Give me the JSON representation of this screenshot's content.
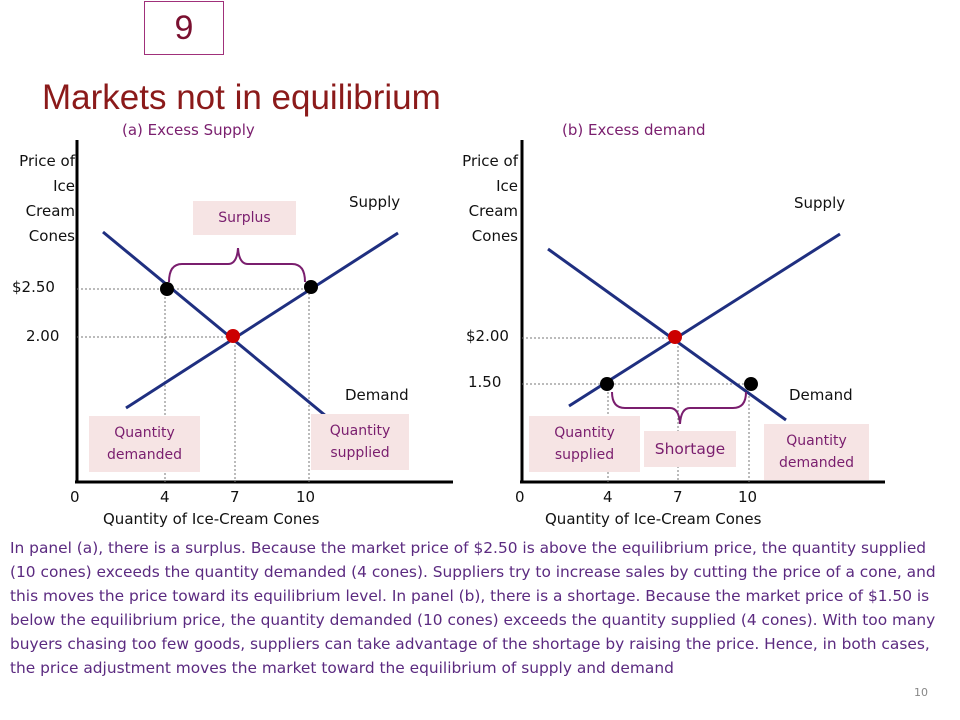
{
  "slide": {
    "number_box": "9",
    "title": "Markets not in equilibrium",
    "page_number": "10"
  },
  "panel_a": {
    "subtitle": "(a) Excess Supply",
    "y_label": [
      "Price of",
      "Ice",
      "Cream",
      "Cones"
    ],
    "x_label": "Quantity of Ice-Cream Cones",
    "supply_label": "Supply",
    "demand_label": "Demand",
    "price_high": "$2.50",
    "price_eq": "2.00",
    "x_ticks": [
      "0",
      "4",
      "7",
      "10"
    ],
    "box_top": "Surplus",
    "box_left": "Quantity demanded",
    "box_right": "Quantity supplied"
  },
  "panel_b": {
    "subtitle": "(b) Excess demand",
    "y_label": [
      "Price of",
      "Ice",
      "Cream",
      "Cones"
    ],
    "x_label": "Quantity of Ice-Cream Cones",
    "supply_label": "Supply",
    "demand_label": "Demand",
    "price_eq": "$2.00",
    "price_low": "1.50",
    "x_ticks": [
      "0",
      "4",
      "7",
      "10"
    ],
    "box_left": "Quantity supplied",
    "box_mid": "Shortage",
    "box_right": "Quantity demanded"
  },
  "colors": {
    "curve": "#1f2f80",
    "axis": "#000000",
    "equilibrium_dot": "#cc0000",
    "market_dot": "#000000",
    "brace": "#7a1e6e",
    "box_fill": "#f6e4e4"
  },
  "description": "In panel (a), there is a surplus. Because the market price of $2.50 is above the equilibrium price, the quantity supplied (10 cones) exceeds the quantity demanded (4 cones). Suppliers try to increase sales by cutting the price of a cone, and this moves the price toward its equilibrium level. In panel (b), there is a shortage. Because the market price of $1.50 is below the equilibrium price, the quantity demanded (10 cones) exceeds the quantity supplied (4 cones). With too many buyers chasing too few goods, suppliers can take advantage of the shortage by raising the price. Hence, in both cases, the price adjustment moves the market toward the equilibrium of supply and demand"
}
